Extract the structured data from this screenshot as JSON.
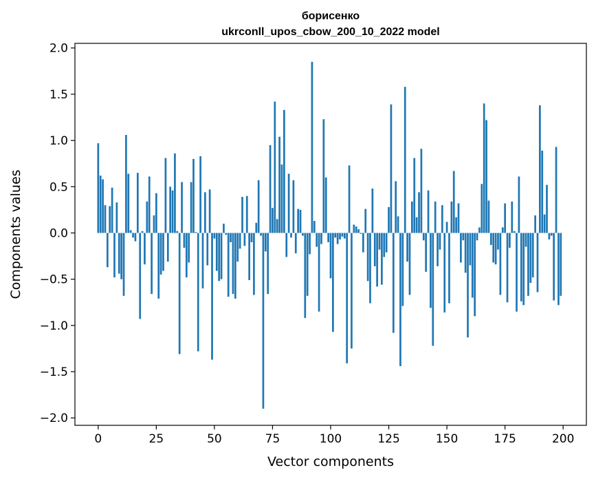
{
  "chart_data": {
    "type": "bar",
    "title": "борисенко",
    "subtitle": "ukrconll_upos_cbow_200_10_2022 model",
    "xlabel": "Vector components",
    "ylabel": "Components values",
    "xlim": [
      -10,
      210
    ],
    "ylim": [
      -2.08,
      2.05
    ],
    "xticks": [
      0,
      25,
      50,
      75,
      100,
      125,
      150,
      175,
      200
    ],
    "yticks": [
      2.0,
      1.5,
      1.0,
      0.5,
      0.0,
      -0.5,
      -1.0,
      -1.5,
      -2.0
    ],
    "ytick_labels": [
      "2.0",
      "1.5",
      "1.0",
      "0.5",
      "0.0",
      "−0.5",
      "−1.0",
      "−1.5",
      "−2.0"
    ],
    "grid": false,
    "bar_color": "#1f77b4",
    "x": [
      0,
      1,
      2,
      3,
      4,
      5,
      6,
      7,
      8,
      9,
      10,
      11,
      12,
      13,
      14,
      15,
      16,
      17,
      18,
      19,
      20,
      21,
      22,
      23,
      24,
      25,
      26,
      27,
      28,
      29,
      30,
      31,
      32,
      33,
      34,
      35,
      36,
      37,
      38,
      39,
      40,
      41,
      42,
      43,
      44,
      45,
      46,
      47,
      48,
      49,
      50,
      51,
      52,
      53,
      54,
      55,
      56,
      57,
      58,
      59,
      60,
      61,
      62,
      63,
      64,
      65,
      66,
      67,
      68,
      69,
      70,
      71,
      72,
      73,
      74,
      75,
      76,
      77,
      78,
      79,
      80,
      81,
      82,
      83,
      84,
      85,
      86,
      87,
      88,
      89,
      90,
      91,
      92,
      93,
      94,
      95,
      96,
      97,
      98,
      99,
      100,
      101,
      102,
      103,
      104,
      105,
      106,
      107,
      108,
      109,
      110,
      111,
      112,
      113,
      114,
      115,
      116,
      117,
      118,
      119,
      120,
      121,
      122,
      123,
      124,
      125,
      126,
      127,
      128,
      129,
      130,
      131,
      132,
      133,
      134,
      135,
      136,
      137,
      138,
      139,
      140,
      141,
      142,
      143,
      144,
      145,
      146,
      147,
      148,
      149,
      150,
      151,
      152,
      153,
      154,
      155,
      156,
      157,
      158,
      159,
      160,
      161,
      162,
      163,
      164,
      165,
      166,
      167,
      168,
      169,
      170,
      171,
      172,
      173,
      174,
      175,
      176,
      177,
      178,
      179,
      180,
      181,
      182,
      183,
      184,
      185,
      186,
      187,
      188,
      189,
      190,
      191,
      192,
      193,
      194,
      195,
      196,
      197,
      198,
      199
    ],
    "values": [
      0.97,
      0.62,
      0.58,
      0.3,
      -0.37,
      0.29,
      0.49,
      -0.48,
      0.33,
      -0.44,
      -0.5,
      -0.68,
      1.06,
      0.64,
      0.03,
      -0.05,
      -0.09,
      0.65,
      -0.93,
      0.02,
      -0.34,
      0.34,
      0.61,
      -0.66,
      0.19,
      0.43,
      -0.71,
      -0.45,
      -0.41,
      0.81,
      -0.31,
      0.5,
      0.46,
      0.86,
      0.02,
      -1.31,
      0.55,
      -0.16,
      -0.48,
      -0.32,
      0.55,
      0.8,
      0.01,
      -1.28,
      0.83,
      -0.6,
      0.44,
      -0.35,
      0.47,
      -1.37,
      -0.06,
      -0.41,
      -0.52,
      -0.5,
      0.1,
      -0.02,
      -0.69,
      -0.1,
      -0.66,
      -0.71,
      -0.31,
      -0.17,
      0.39,
      -0.14,
      0.4,
      -0.51,
      -0.1,
      -0.67,
      0.11,
      0.57,
      -0.03,
      -1.9,
      -0.2,
      -0.66,
      0.95,
      0.27,
      1.42,
      0.15,
      1.04,
      0.74,
      1.33,
      -0.26,
      0.64,
      -0.05,
      0.57,
      -0.22,
      0.26,
      0.25,
      -0.03,
      -0.92,
      -0.68,
      -0.23,
      1.85,
      0.13,
      -0.15,
      -0.85,
      -0.12,
      1.23,
      0.6,
      -0.1,
      -0.49,
      -1.07,
      -0.05,
      -0.12,
      -0.07,
      -0.04,
      -0.06,
      -1.41,
      0.73,
      -1.25,
      0.09,
      0.07,
      0.04,
      -0.01,
      -0.21,
      0.26,
      -0.52,
      -0.76,
      0.48,
      -0.36,
      -0.58,
      -0.18,
      -0.56,
      -0.26,
      -0.21,
      0.28,
      1.39,
      -1.08,
      0.56,
      0.18,
      -1.44,
      -0.79,
      1.58,
      -0.31,
      -0.67,
      0.34,
      0.81,
      0.17,
      0.44,
      0.91,
      -0.08,
      -0.42,
      0.46,
      -0.81,
      -1.22,
      0.34,
      -0.36,
      -0.18,
      0.3,
      -0.86,
      0.12,
      -0.76,
      0.34,
      0.67,
      0.17,
      0.32,
      -0.32,
      -0.08,
      -0.43,
      -1.13,
      -0.35,
      -0.7,
      -0.9,
      -0.08,
      0.06,
      0.53,
      1.4,
      1.22,
      0.35,
      -0.13,
      -0.32,
      -0.34,
      -0.18,
      -0.67,
      0.06,
      0.32,
      -0.75,
      -0.16,
      0.34,
      0.02,
      -0.85,
      0.61,
      -0.74,
      -0.78,
      -0.15,
      -0.68,
      -0.54,
      -0.48,
      0.19,
      -0.64,
      1.38,
      0.89,
      0.2,
      0.52,
      -0.07,
      -0.03,
      -0.73,
      0.93,
      -0.78,
      -0.68
    ]
  }
}
